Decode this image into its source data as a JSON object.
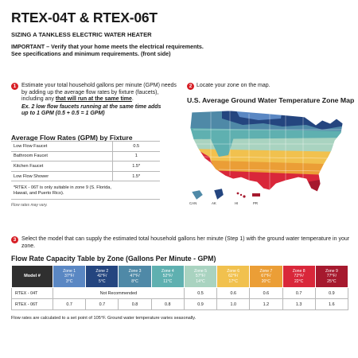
{
  "header": {
    "title": "RTEX-04T & RTEX-06T",
    "subtitle": "SIZING A TANKLESS ELECTRIC WATER HEATER",
    "important_line1": "IMPORTANT – Verify that your home meets the electrical requirements.",
    "important_line2": "See specifications and minimum requirements. (front side)"
  },
  "step1": {
    "number": "1",
    "text_a": "Estimate your total household gallons per minute (GPM) needs by adding up the average flow rates by fixture (faucets), including any ",
    "text_u": "that will run at the same time",
    "text_b": ".",
    "example_line1": "Ex. 2 low flow faucets running at the same time adds",
    "example_line2": "up to 1 GPM (0.5 + 0.5 = 1 GPM)"
  },
  "flow_rates": {
    "title": "Average Flow Rates (GPM) by Fixture",
    "rows": [
      {
        "fixture": "Low Flow Faucet",
        "value": "0.5"
      },
      {
        "fixture": "Bathroom Faucet",
        "value": "1"
      },
      {
        "fixture": "Kitchen Faucet",
        "value": "1.5*"
      },
      {
        "fixture": "Low Flow Shower",
        "value": "1.5*"
      }
    ],
    "note_line1": "*RTEX - 06T is only suitable in zone 9 (S. Florida,",
    "note_line2": "Hawaii, and Puerto Rico).",
    "caption": "Flow rates may vary."
  },
  "step2": {
    "number": "2",
    "text": "Locate your zone on the map.",
    "map_title": "U.S. Average Ground Water Temperature Zone Map",
    "labels": {
      "can": "CAN",
      "ak": "AK",
      "hi": "HI",
      "pr": "PR"
    }
  },
  "step3": {
    "number": "3",
    "text": "Select the model that can supply the estimated total household gallons her minute (Step 1) with the ground water temperature in your zone."
  },
  "capacity": {
    "title": "Flow Rate Capacity Table by Zone (Gallons Per Minute - GPM)",
    "model_header": "Model #",
    "zones": [
      {
        "name": "Zone 1",
        "f": "37°F/",
        "c": "3°C",
        "color": "#5a87c3"
      },
      {
        "name": "Zone 2",
        "f": "42°F/",
        "c": "5°C",
        "color": "#24457f"
      },
      {
        "name": "Zone 3",
        "f": "47°F/",
        "c": "8°C",
        "color": "#4f89a7"
      },
      {
        "name": "Zone 4",
        "f": "52°F/",
        "c": "11°C",
        "color": "#5fb0b0"
      },
      {
        "name": "Zone 5",
        "f": "57°F/",
        "c": "14°C",
        "color": "#a9d3c0"
      },
      {
        "name": "Zone 6",
        "f": "62°F/",
        "c": "17°C",
        "color": "#f1c14e"
      },
      {
        "name": "Zone 7",
        "f": "67°F/",
        "c": "20°C",
        "color": "#eb9e36"
      },
      {
        "name": "Zone 8",
        "f": "72°F/",
        "c": "22°C",
        "color": "#d9273a"
      },
      {
        "name": "Zone 9",
        "f": "77°F/",
        "c": "25°C",
        "color": "#a6192e"
      }
    ],
    "rows": [
      {
        "model": "RTEX - 04T",
        "not_recommended": "Not Recommended",
        "values": [
          "0.5",
          "0.6",
          "0.6",
          "0.7",
          "0.9"
        ]
      },
      {
        "model": "RTEX - 06T",
        "values": [
          "0.7",
          "0.7",
          "0.8",
          "0.8",
          "0.9",
          "1.0",
          "1.2",
          "1.3",
          "1.6"
        ]
      }
    ],
    "note": "Flow rates are calculated to a set point of 105°F. Ground water temperature varies seasonally."
  }
}
